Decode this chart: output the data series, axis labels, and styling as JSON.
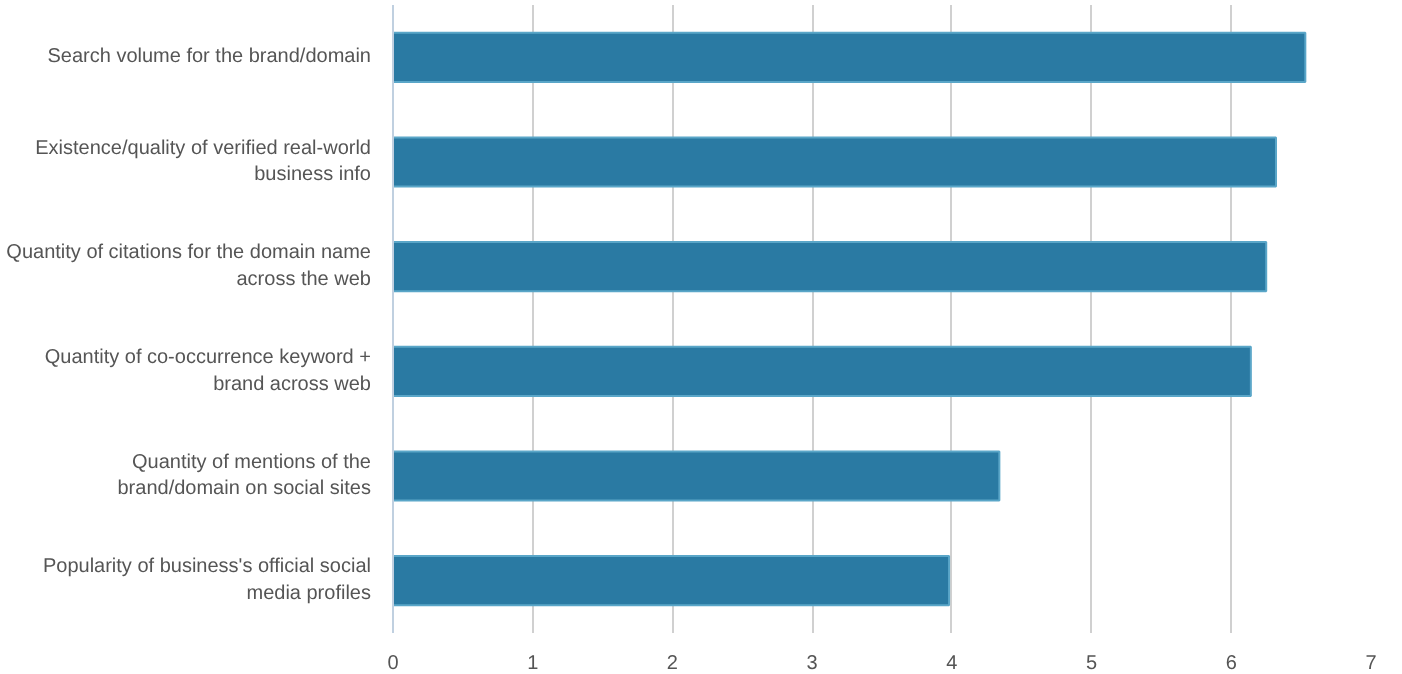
{
  "chart_data": {
    "type": "bar",
    "orientation": "horizontal",
    "categories": [
      "Search volume for the brand/domain",
      "Existence/quality of verified real-world\nbusiness info",
      "Quantity of citations for the domain name\nacross the web",
      "Quantity of co-occurrence keyword +\nbrand across web",
      "Quantity of mentions of the\nbrand/domain on social sites",
      "Popularity of business's official social\nmedia profiles"
    ],
    "values": [
      6.53,
      6.32,
      6.25,
      6.14,
      4.34,
      3.98
    ],
    "color": "#2a7aa3",
    "xlim": [
      0,
      7
    ],
    "xticks": [
      0,
      1,
      2,
      3,
      4,
      5,
      6,
      7
    ],
    "grid": "x"
  }
}
